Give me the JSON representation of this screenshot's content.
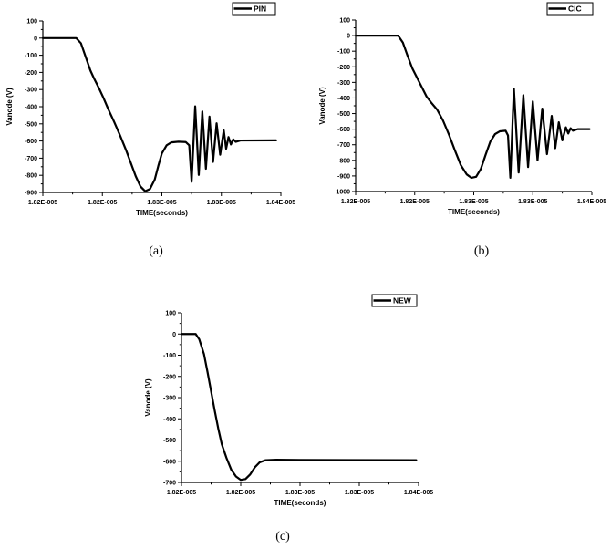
{
  "figure": {
    "background": "#ffffff",
    "line_color": "#000000",
    "captions": {
      "a": "(a)",
      "b": "(b)",
      "c": "(c)"
    }
  },
  "chart_data": [
    {
      "id": "a",
      "type": "line",
      "caption": "(a)",
      "legend": "PIN",
      "legend_position": "top-right-outside",
      "grid": false,
      "xlabel": "TIME(seconds)",
      "ylabel": "Vanode (V)",
      "x_tick_labels": [
        "1.82E-005",
        "1.82E-005",
        "1.83E-005",
        "1.83E-005",
        "1.84E-005"
      ],
      "x_range_1e5s": [
        1.82,
        1.84
      ],
      "y_tick_values": [
        100,
        0,
        -100,
        -200,
        -300,
        -400,
        -500,
        -600,
        -700,
        -800,
        -900
      ],
      "y_range": [
        -900,
        100
      ],
      "line_color": "#000000",
      "points": [
        [
          1.82,
          0
        ],
        [
          1.8228,
          0
        ],
        [
          1.8232,
          -30
        ],
        [
          1.8236,
          -110
        ],
        [
          1.824,
          -190
        ],
        [
          1.8243,
          -235
        ],
        [
          1.8247,
          -290
        ],
        [
          1.8251,
          -350
        ],
        [
          1.8255,
          -415
        ],
        [
          1.826,
          -490
        ],
        [
          1.8265,
          -570
        ],
        [
          1.827,
          -655
        ],
        [
          1.8274,
          -730
        ],
        [
          1.8278,
          -805
        ],
        [
          1.8282,
          -865
        ],
        [
          1.8286,
          -893
        ],
        [
          1.829,
          -880
        ],
        [
          1.8294,
          -825
        ],
        [
          1.8297,
          -745
        ],
        [
          1.83,
          -672
        ],
        [
          1.8304,
          -625
        ],
        [
          1.8308,
          -608
        ],
        [
          1.8314,
          -604
        ],
        [
          1.832,
          -606
        ],
        [
          1.8323,
          -625
        ],
        [
          1.8325,
          -838
        ],
        [
          1.8328,
          -398
        ],
        [
          1.8331,
          -798
        ],
        [
          1.8334,
          -428
        ],
        [
          1.8337,
          -762
        ],
        [
          1.834,
          -458
        ],
        [
          1.8343,
          -722
        ],
        [
          1.8346,
          -497
        ],
        [
          1.8349,
          -680
        ],
        [
          1.8352,
          -538
        ],
        [
          1.8354,
          -645
        ],
        [
          1.8356,
          -577
        ],
        [
          1.8358,
          -620
        ],
        [
          1.836,
          -590
        ],
        [
          1.8362,
          -605
        ],
        [
          1.8366,
          -597
        ],
        [
          1.8396,
          -596
        ]
      ]
    },
    {
      "id": "b",
      "type": "line",
      "caption": "(b)",
      "legend": "CIC",
      "legend_position": "top-right-outside",
      "grid": false,
      "xlabel": "TIME(seconds)",
      "ylabel": "Vanode (V)",
      "x_tick_labels": [
        "1.82E-005",
        "1.82E-005",
        "1.83E-005",
        "1.83E-005",
        "1.84E-005"
      ],
      "x_range_1e5s": [
        1.82,
        1.84
      ],
      "y_tick_values": [
        100,
        0,
        -100,
        -200,
        -300,
        -400,
        -500,
        -600,
        -700,
        -800,
        -900,
        -1000
      ],
      "y_range": [
        -1000,
        100
      ],
      "line_color": "#000000",
      "points": [
        [
          1.82,
          0
        ],
        [
          1.8236,
          0
        ],
        [
          1.824,
          -45
        ],
        [
          1.8244,
          -130
        ],
        [
          1.8248,
          -210
        ],
        [
          1.8252,
          -270
        ],
        [
          1.8256,
          -330
        ],
        [
          1.826,
          -390
        ],
        [
          1.8264,
          -430
        ],
        [
          1.8269,
          -475
        ],
        [
          1.8274,
          -545
        ],
        [
          1.8279,
          -635
        ],
        [
          1.8284,
          -735
        ],
        [
          1.8289,
          -830
        ],
        [
          1.8294,
          -890
        ],
        [
          1.8298,
          -912
        ],
        [
          1.8302,
          -905
        ],
        [
          1.8306,
          -855
        ],
        [
          1.831,
          -765
        ],
        [
          1.8314,
          -680
        ],
        [
          1.8318,
          -632
        ],
        [
          1.8322,
          -614
        ],
        [
          1.8327,
          -610
        ],
        [
          1.8329,
          -640
        ],
        [
          1.8331,
          -912
        ],
        [
          1.8334,
          -340
        ],
        [
          1.8338,
          -878
        ],
        [
          1.8342,
          -382
        ],
        [
          1.8346,
          -843
        ],
        [
          1.835,
          -422
        ],
        [
          1.8354,
          -800
        ],
        [
          1.8358,
          -468
        ],
        [
          1.8362,
          -760
        ],
        [
          1.8366,
          -515
        ],
        [
          1.8369,
          -722
        ],
        [
          1.8372,
          -556
        ],
        [
          1.8375,
          -672
        ],
        [
          1.8378,
          -588
        ],
        [
          1.838,
          -628
        ],
        [
          1.8382,
          -594
        ],
        [
          1.8384,
          -610
        ],
        [
          1.8388,
          -600
        ],
        [
          1.8398,
          -600
        ]
      ]
    },
    {
      "id": "c",
      "type": "line",
      "caption": "(c)",
      "legend": "NEW",
      "legend_position": "top-right-outside",
      "grid": false,
      "xlabel": "TIME(seconds)",
      "ylabel": "Vanode (V)",
      "x_tick_labels": [
        "1.82E-005",
        "1.82E-005",
        "1.83E-005",
        "1.83E-005",
        "1.84E-005"
      ],
      "x_range_1e5s": [
        1.82,
        1.84
      ],
      "y_tick_values": [
        100,
        0,
        -100,
        -200,
        -300,
        -400,
        -500,
        -600,
        -700
      ],
      "y_range": [
        -700,
        100
      ],
      "line_color": "#000000",
      "points": [
        [
          1.82,
          0
        ],
        [
          1.8212,
          0
        ],
        [
          1.8215,
          -25
        ],
        [
          1.8219,
          -95
        ],
        [
          1.8222,
          -180
        ],
        [
          1.8225,
          -270
        ],
        [
          1.8228,
          -360
        ],
        [
          1.8231,
          -445
        ],
        [
          1.8234,
          -520
        ],
        [
          1.8238,
          -585
        ],
        [
          1.8242,
          -640
        ],
        [
          1.8246,
          -672
        ],
        [
          1.825,
          -688
        ],
        [
          1.8254,
          -684
        ],
        [
          1.8258,
          -662
        ],
        [
          1.8262,
          -628
        ],
        [
          1.8266,
          -605
        ],
        [
          1.8271,
          -595
        ],
        [
          1.828,
          -593
        ],
        [
          1.83,
          -594
        ],
        [
          1.8398,
          -595
        ]
      ]
    }
  ]
}
